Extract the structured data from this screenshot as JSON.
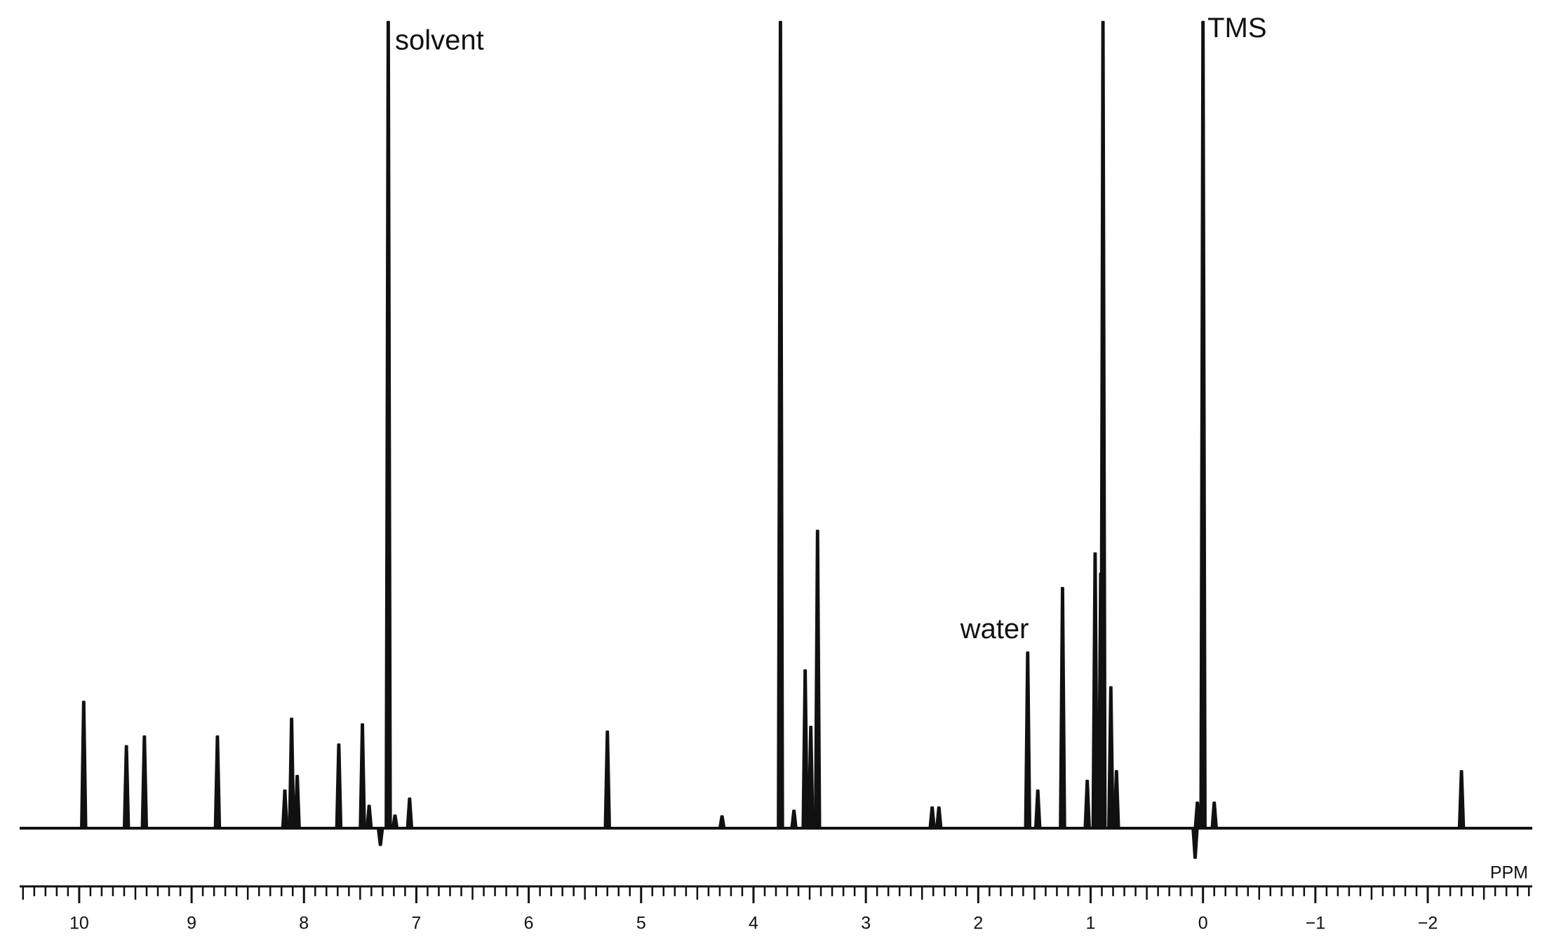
{
  "chart_data": {
    "type": "spectrum",
    "x_label": "PPM",
    "x": [
      9.96,
      9.58,
      9.42,
      8.77,
      8.17,
      8.11,
      8.06,
      7.69,
      7.48,
      7.42,
      7.32,
      7.25,
      7.19,
      7.06,
      5.3,
      4.28,
      3.76,
      3.64,
      3.54,
      3.49,
      3.43,
      2.41,
      2.35,
      1.56,
      1.47,
      1.25,
      1.03,
      0.96,
      0.91,
      0.89,
      0.82,
      0.77,
      0.07,
      0.05,
      0.0,
      -0.1,
      -2.3
    ],
    "values": [
      15.7,
      10.2,
      11.4,
      11.4,
      4.7,
      13.6,
      6.5,
      10.4,
      12.9,
      2.8,
      -2.1,
      100,
      1.6,
      3.7,
      12.0,
      1.5,
      100,
      2.2,
      19.6,
      12.6,
      36.9,
      2.6,
      2.6,
      21.8,
      4.7,
      29.8,
      5.9,
      34.1,
      31.6,
      100,
      17.5,
      7.1,
      -3.7,
      3.2,
      100,
      3.2,
      7.1
    ],
    "color": "#111111",
    "xlim": [
      10.53,
      -2.93
    ],
    "ylim": [
      0,
      100
    ],
    "xticks": [
      10,
      9,
      8,
      7,
      6,
      5,
      4,
      3,
      2,
      1,
      0,
      {
        "value": -1,
        "label": "−1"
      },
      {
        "value": -2,
        "label": "−2"
      }
    ],
    "xminor": 0.1,
    "annotations": [
      {
        "text": "solvent",
        "x": 7.19,
        "y": 97.5
      },
      {
        "text": "water",
        "x": 2.16,
        "y": 24.5
      },
      {
        "text": "TMS",
        "x": -0.04,
        "y": 99
      }
    ]
  }
}
